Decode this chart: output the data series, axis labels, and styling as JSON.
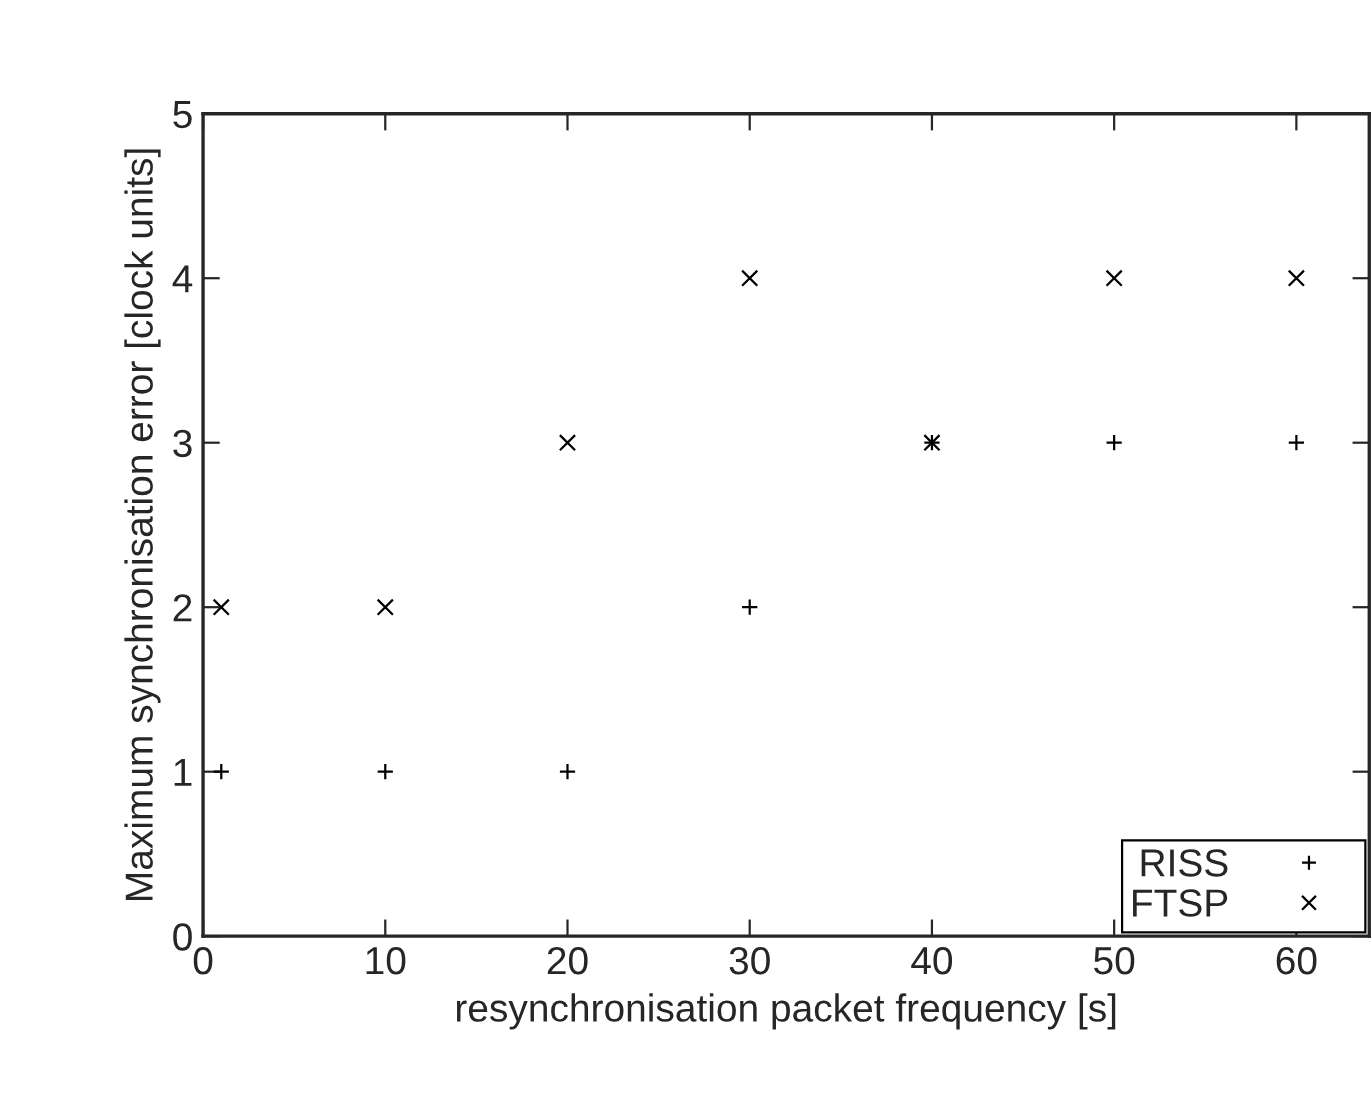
{
  "chart_data": {
    "type": "scatter",
    "xlabel": "resynchronisation packet frequency [s]",
    "ylabel": "Maximum synchronisation error [clock units]",
    "x": [
      1,
      10,
      20,
      30,
      40,
      50,
      60
    ],
    "series": [
      {
        "name": "RISS",
        "color": "#000000",
        "marker": "plus",
        "values": [
          1,
          1,
          1,
          2,
          3,
          3,
          3
        ]
      },
      {
        "name": "FTSP",
        "color": "#000000",
        "marker": "cross",
        "values": [
          2,
          2,
          3,
          4,
          3,
          4,
          4
        ]
      }
    ],
    "xlim": [
      0,
      64
    ],
    "xticks": [
      0,
      10,
      20,
      30,
      40,
      50,
      60
    ],
    "ylim": [
      0,
      5
    ],
    "yticks": [
      0,
      1,
      2,
      3,
      4,
      5
    ],
    "grid": false,
    "legend": "bottom right"
  }
}
